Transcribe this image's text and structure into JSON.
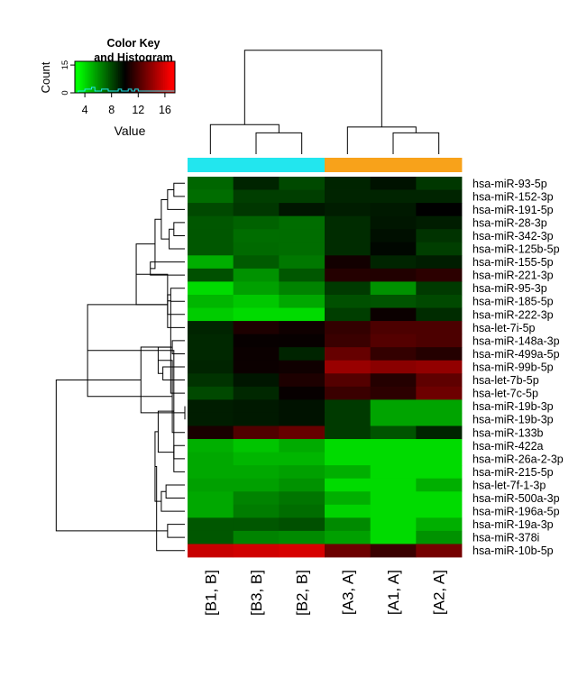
{
  "chart_data": {
    "type": "heatmap",
    "title": "",
    "columns": [
      "[B1, B]",
      "[B3, B]",
      "[B2, B]",
      "[A3, A]",
      "[A1, A]",
      "[A2, A]"
    ],
    "column_groups": [
      "B",
      "B",
      "B",
      "A",
      "A",
      "A"
    ],
    "group_colors": {
      "B": "#22e6ee",
      "A": "#f8a21a"
    },
    "rows": [
      "hsa-miR-93-5p",
      "hsa-miR-152-3p",
      "hsa-miR-191-5p",
      "hsa-miR-28-3p",
      "hsa-miR-342-3p",
      "hsa-miR-125b-5p",
      "hsa-miR-155-5p",
      "hsa-miR-221-3p",
      "hsa-miR-95-3p",
      "hsa-miR-185-5p",
      "hsa-miR-222-3p",
      "hsa-let-7i-5p",
      "hsa-miR-148a-3p",
      "hsa-miR-499a-5p",
      "hsa-miR-99b-5p",
      "hsa-let-7b-5p",
      "hsa-let-7c-5p",
      "hsa-miR-19b-3p",
      "hsa-miR-19b-3p",
      "hsa-miR-133b",
      "hsa-miR-422a",
      "hsa-miR-26a-2-3p",
      "hsa-miR-215-5p",
      "hsa-let-7f-1-3p",
      "hsa-miR-500a-3p",
      "hsa-miR-196a-5p",
      "hsa-miR-19a-3p",
      "hsa-miR-378i",
      "hsa-miR-10b-5p"
    ],
    "values": [
      [
        7.2,
        9.0,
        8.0,
        9.0,
        9.5,
        8.5
      ],
      [
        7.0,
        8.3,
        8.3,
        9.0,
        9.0,
        9.0
      ],
      [
        8.0,
        8.5,
        9.4,
        9.2,
        9.3,
        10.0
      ],
      [
        7.6,
        7.3,
        7.0,
        8.8,
        9.4,
        9.2
      ],
      [
        7.6,
        7.0,
        7.0,
        8.8,
        9.6,
        8.6
      ],
      [
        7.6,
        7.1,
        7.0,
        8.8,
        9.8,
        8.3
      ],
      [
        5.2,
        7.5,
        6.7,
        10.5,
        9.0,
        9.2
      ],
      [
        7.8,
        6.0,
        7.6,
        11.0,
        10.9,
        11.2
      ],
      [
        4.0,
        5.6,
        6.4,
        8.4,
        6.0,
        8.4
      ],
      [
        5.0,
        4.5,
        5.4,
        7.8,
        7.7,
        8.0
      ],
      [
        4.4,
        4.0,
        4.0,
        8.3,
        10.3,
        8.8
      ],
      [
        9.0,
        10.8,
        10.4,
        11.4,
        12.1,
        12.1
      ],
      [
        8.9,
        10.2,
        10.2,
        11.6,
        12.3,
        12.1
      ],
      [
        8.9,
        10.3,
        9.0,
        12.8,
        11.4,
        11.0
      ],
      [
        9.0,
        10.3,
        10.4,
        14.2,
        13.8,
        14.0
      ],
      [
        8.6,
        9.4,
        10.8,
        12.3,
        11.0,
        12.6
      ],
      [
        8.0,
        8.9,
        10.2,
        11.6,
        11.2,
        13.0
      ],
      [
        9.2,
        9.3,
        9.5,
        8.4,
        5.5,
        5.5
      ],
      [
        9.2,
        9.3,
        9.5,
        8.4,
        5.5,
        5.5
      ],
      [
        10.7,
        12.2,
        12.8,
        8.4,
        7.7,
        9.0
      ],
      [
        5.2,
        4.6,
        5.3,
        4.0,
        4.0,
        4.0
      ],
      [
        5.4,
        5.0,
        5.0,
        4.0,
        4.0,
        4.0
      ],
      [
        5.4,
        5.4,
        5.6,
        5.2,
        4.0,
        4.0
      ],
      [
        5.6,
        5.6,
        6.0,
        4.0,
        4.0,
        5.2
      ],
      [
        5.4,
        6.4,
        6.8,
        5.2,
        4.0,
        4.0
      ],
      [
        5.4,
        6.6,
        7.0,
        4.2,
        4.0,
        4.0
      ],
      [
        7.6,
        7.6,
        7.8,
        6.2,
        4.0,
        5.2
      ],
      [
        7.6,
        6.4,
        6.2,
        5.6,
        4.0,
        6.0
      ],
      [
        15.5,
        15.7,
        15.9,
        13.0,
        11.6,
        13.2
      ]
    ],
    "color_scale": {
      "min": 3,
      "mid": 10,
      "max": 17,
      "low_color": "#00ff00",
      "mid_color": "#000000",
      "high_color": "#ff0000"
    },
    "color_key": {
      "title_line1": "Color Key",
      "title_line2": "and Histogram",
      "ylabel": "Count",
      "xlabel": "Value",
      "x_ticks": [
        4,
        8,
        12,
        16
      ],
      "y_ticks": [
        0,
        15
      ],
      "x_range": [
        2.5,
        17.5
      ],
      "y_range": [
        0,
        17
      ],
      "histogram_bin_width": 0.5,
      "histogram_counts": [
        0,
        1,
        1,
        2,
        2,
        3,
        1,
        1,
        2,
        2,
        1,
        1,
        1,
        2,
        1,
        1,
        2,
        1,
        2,
        1,
        1,
        1,
        1,
        1,
        1,
        1,
        1,
        1,
        1,
        1
      ]
    },
    "col_dendrogram": {
      "leaves": [
        "[B1, B]",
        "[B3, B]",
        "[B2, B]",
        "[A3, A]",
        "[A1, A]",
        "[A2, A]"
      ],
      "merges": [
        [
          -2,
          -3,
          0.82
        ],
        [
          -5,
          -6,
          0.82
        ],
        [
          -1,
          1,
          0.75
        ],
        [
          -4,
          2,
          0.77
        ],
        [
          3,
          4,
          0.12
        ]
      ]
    },
    "row_dendrogram": {
      "merges": [
        [
          -1,
          -2,
          0.93
        ],
        [
          1,
          -3,
          0.89
        ],
        [
          -4,
          -5,
          0.93
        ],
        [
          3,
          -6,
          0.9
        ],
        [
          2,
          4,
          0.85
        ],
        [
          -7,
          -8,
          0.78
        ],
        [
          5,
          6,
          0.81
        ],
        [
          -9,
          -10,
          0.91
        ],
        [
          8,
          -11,
          0.89
        ],
        [
          7,
          9,
          0.69
        ],
        [
          -13,
          -14,
          0.92
        ],
        [
          -12,
          10,
          0.89
        ],
        [
          -15,
          -16,
          0.86
        ],
        [
          -17,
          12,
          0.91
        ],
        [
          11,
          13,
          0.83
        ],
        [
          -18,
          -19,
          1.0
        ],
        [
          15,
          -20,
          0.92
        ],
        [
          14,
          16,
          0.72
        ],
        [
          9,
          17,
          0.38
        ],
        [
          -21,
          -22,
          0.93
        ],
        [
          19,
          -23,
          0.93
        ],
        [
          -24,
          -25,
          0.88
        ],
        [
          20,
          21,
          0.83
        ],
        [
          22,
          -26,
          0.85
        ],
        [
          -27,
          -28,
          0.89
        ],
        [
          23,
          24,
          0.81
        ],
        [
          18,
          25,
          0.18
        ],
        [
          26,
          -29,
          0.82
        ]
      ]
    }
  }
}
